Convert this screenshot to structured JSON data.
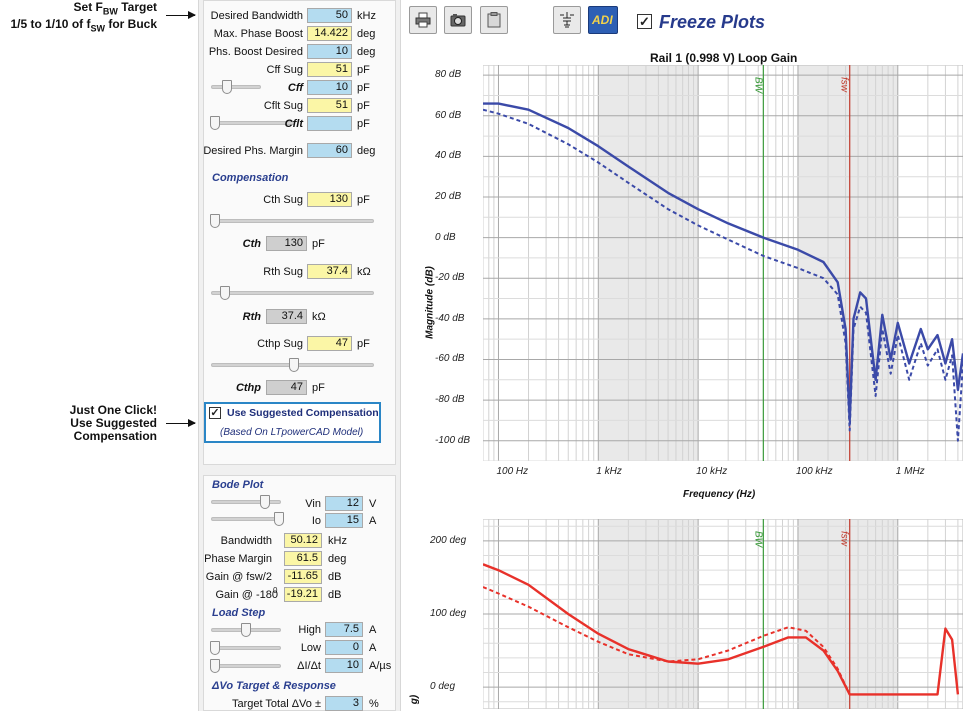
{
  "annotations": {
    "bw_target_line1": "Set F",
    "bw_target_sub1": "BW",
    "bw_target_line1b": " Target",
    "bw_target_line2a": "1/5 to 1/10 of f",
    "bw_target_sub2": "SW",
    "bw_target_line2b": " for Buck",
    "one_click_line1": "Just One Click!",
    "one_click_line2": "Use Suggested",
    "one_click_line3": "Compensation"
  },
  "panel": {
    "desired_bandwidth": {
      "label": "Desired Bandwidth",
      "value": "50",
      "unit": "kHz"
    },
    "max_phase_boost": {
      "label": "Max. Phase Boost",
      "value": "14.422",
      "unit": "deg"
    },
    "phs_boost_desired": {
      "label": "Phs. Boost Desired",
      "value": "10",
      "unit": "deg"
    },
    "cff_sug": {
      "label": "Cff Sug",
      "value": "51",
      "unit": "pF"
    },
    "cff": {
      "label": "Cff",
      "value": "10",
      "unit": "pF"
    },
    "cflt_sug": {
      "label": "Cflt Sug",
      "value": "51",
      "unit": "pF"
    },
    "cflt": {
      "label": "Cflt",
      "value": "",
      "unit": "pF"
    },
    "desired_phs_margin": {
      "label": "Desired Phs. Margin",
      "value": "60",
      "unit": "deg"
    },
    "compensation_title": "Compensation",
    "cth_sug": {
      "label": "Cth Sug",
      "value": "130",
      "unit": "pF"
    },
    "cth": {
      "label": "Cth",
      "value": "130",
      "unit": "pF"
    },
    "rth_sug": {
      "label": "Rth Sug",
      "value": "37.4",
      "unit": "kΩ"
    },
    "rth": {
      "label": "Rth",
      "value": "37.4",
      "unit": "kΩ"
    },
    "cthp_sug": {
      "label": "Cthp Sug",
      "value": "47",
      "unit": "pF"
    },
    "cthp": {
      "label": "Cthp",
      "value": "47",
      "unit": "pF"
    },
    "use_suggested": {
      "label": "Use Suggested Compensation",
      "checked": true,
      "note": "(Based On LTpowerCAD Model)"
    },
    "bode_title": "Bode Plot",
    "vin": {
      "label": "Vin",
      "value": "12",
      "unit": "V"
    },
    "io": {
      "label": "Io",
      "value": "15",
      "unit": "A"
    },
    "bandwidth": {
      "label": "Bandwidth",
      "value": "50.12",
      "unit": "kHz"
    },
    "phase_margin": {
      "label": "Phase Margin",
      "value": "61.5",
      "unit": "deg"
    },
    "gain_fsw2": {
      "label": "Gain @ fsw/2",
      "value": "-11.65",
      "unit": "dB"
    },
    "gain_180": {
      "label": "Gain @ -180",
      "sup": "0",
      "value": "-19.21",
      "unit": "dB"
    },
    "load_step_title": "Load Step",
    "high": {
      "label": "High",
      "value": "7.5",
      "unit": "A"
    },
    "low": {
      "label": "Low",
      "value": "0",
      "unit": "A"
    },
    "didt": {
      "label": "ΔI/Δt",
      "value": "10",
      "unit": "A/µs"
    },
    "dvo_title": "ΔVo Target & Response",
    "target_total": {
      "label": "Target Total ΔVo ±",
      "value": "3",
      "unit": "%"
    }
  },
  "toolbar": {
    "icons": [
      "printer-icon",
      "camera-icon",
      "clipboard-icon",
      "circuit-icon",
      "adi-icon"
    ],
    "adi_label": "ADI",
    "freeze": {
      "label": "Freeze Plots",
      "checked": true
    }
  },
  "gain_plot": {
    "title": "Rail 1 (0.998 V) Loop Gain",
    "ylabel": "Magnitude (dB)",
    "xlabel": "Frequency (Hz)",
    "y_ticks": [
      "80 dB",
      "60 dB",
      "40 dB",
      "20 dB",
      "0 dB",
      "-20 dB",
      "-40 dB",
      "-60 dB",
      "-80 dB",
      "-100 dB"
    ],
    "x_ticks": [
      "100 Hz",
      "1 kHz",
      "10 kHz",
      "100 kHz",
      "1 MHz"
    ],
    "bw_marker": "BW",
    "fsw_marker": "fsw",
    "colors": {
      "gain": "#3b4aa8",
      "bw": "#3a9a3a",
      "fsw": "#c0392b"
    }
  },
  "phase_plot": {
    "ylabel": "g)",
    "y_ticks": [
      "200 deg",
      "100 deg",
      "0 deg"
    ],
    "bw_marker": "BW",
    "fsw_marker": "fsw",
    "colors": {
      "phase": "#e8312a"
    }
  },
  "chart_data": [
    {
      "type": "line",
      "title": "Rail 1 (0.998 V) Loop Gain",
      "xlabel": "Frequency (Hz)",
      "ylabel": "Magnitude (dB)",
      "x_scale": "log",
      "xlim": [
        70,
        4500000
      ],
      "ylim": [
        -110,
        85
      ],
      "grid": true,
      "series": [
        {
          "style": "solid",
          "x": [
            70,
            100,
            200,
            500,
            1000,
            2000,
            5000,
            10000,
            20000,
            45000,
            100000,
            180000,
            250000,
            300000,
            330000,
            360000,
            420000,
            480000,
            600000,
            700000,
            850000,
            1000000,
            1300000,
            1700000,
            2000000,
            2500000,
            3000000,
            3500000,
            4000000,
            4500000
          ],
          "y": [
            66,
            66,
            63,
            54,
            45,
            35,
            22,
            14,
            7,
            0,
            -6,
            -12,
            -22,
            -45,
            -90,
            -40,
            -27,
            -30,
            -70,
            -38,
            -60,
            -42,
            -62,
            -45,
            -55,
            -48,
            -62,
            -50,
            -75,
            -57
          ]
        },
        {
          "style": "dashed",
          "x": [
            70,
            100,
            200,
            500,
            1000,
            2000,
            5000,
            10000,
            20000,
            45000,
            100000,
            180000,
            250000,
            300000,
            330000,
            360000,
            420000,
            480000,
            600000,
            700000,
            850000,
            1000000,
            1300000,
            1700000,
            2000000,
            2500000,
            3000000,
            3500000,
            4000000,
            4500000
          ],
          "y": [
            63,
            61,
            56,
            46,
            37,
            27,
            14,
            6,
            -1,
            -9,
            -15,
            -20,
            -28,
            -52,
            -95,
            -45,
            -34,
            -37,
            -78,
            -45,
            -67,
            -48,
            -70,
            -52,
            -63,
            -55,
            -70,
            -58,
            -100,
            -62
          ]
        }
      ],
      "markers": [
        {
          "label": "BW",
          "x": 45000
        },
        {
          "label": "fsw",
          "x": 330000
        }
      ]
    },
    {
      "type": "line",
      "title": "",
      "ylabel": "",
      "x_scale": "log",
      "xlim": [
        70,
        4500000
      ],
      "ylim": [
        -30,
        230
      ],
      "grid": true,
      "series": [
        {
          "style": "solid",
          "x": [
            70,
            100,
            200,
            500,
            1000,
            2000,
            5000,
            10000,
            20000,
            45000,
            80000,
            120000,
            180000,
            250000,
            330000,
            2500000,
            3000000,
            3500000,
            4000000
          ],
          "y": [
            168,
            160,
            140,
            100,
            73,
            52,
            35,
            32,
            38,
            55,
            68,
            68,
            50,
            22,
            -10,
            -10,
            80,
            65,
            -10
          ]
        },
        {
          "style": "dashed",
          "x": [
            70,
            100,
            200,
            500,
            1000,
            2000,
            5000,
            10000,
            20000,
            45000,
            80000,
            120000,
            180000,
            250000,
            330000
          ],
          "y": [
            137,
            128,
            110,
            82,
            62,
            45,
            35,
            38,
            50,
            70,
            82,
            77,
            55,
            25,
            -10
          ]
        }
      ],
      "markers": [
        {
          "label": "BW",
          "x": 45000
        },
        {
          "label": "fsw",
          "x": 330000
        }
      ]
    }
  ]
}
